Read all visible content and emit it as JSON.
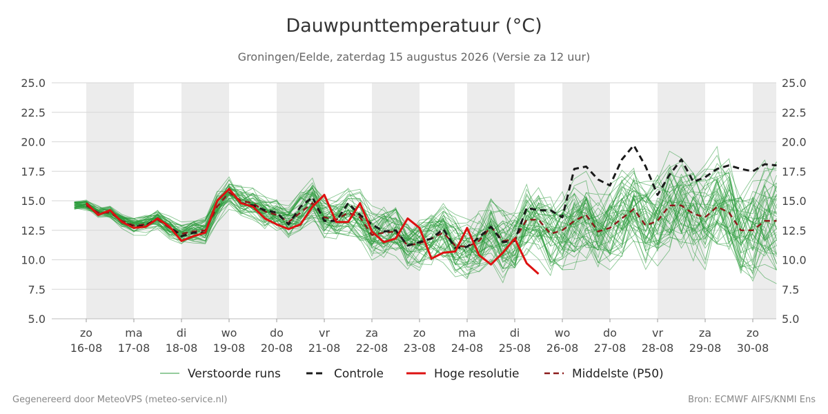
{
  "chart_data": {
    "type": "line",
    "title": "Dauwpunttemperatuur (°C)",
    "subtitle": "Groningen/Eelde, zaterdag 15 augustus 2026 (Versie za 12 uur)",
    "ylim": [
      5.0,
      25.0
    ],
    "y_ticks": [
      "5.0",
      "7.5",
      "10.0",
      "12.5",
      "15.0",
      "17.5",
      "20.0",
      "22.5",
      "25.0"
    ],
    "x_ticks": [
      {
        "day": "zo",
        "date": "16-08"
      },
      {
        "day": "ma",
        "date": "17-08"
      },
      {
        "day": "di",
        "date": "18-08"
      },
      {
        "day": "wo",
        "date": "19-08"
      },
      {
        "day": "do",
        "date": "20-08"
      },
      {
        "day": "vr",
        "date": "21-08"
      },
      {
        "day": "za",
        "date": "22-08"
      },
      {
        "day": "zo",
        "date": "23-08"
      },
      {
        "day": "ma",
        "date": "24-08"
      },
      {
        "day": "di",
        "date": "25-08"
      },
      {
        "day": "wo",
        "date": "26-08"
      },
      {
        "day": "do",
        "date": "27-08"
      },
      {
        "day": "vr",
        "date": "28-08"
      },
      {
        "day": "za",
        "date": "29-08"
      },
      {
        "day": "zo",
        "date": "30-08"
      }
    ],
    "grid": true,
    "legend_position": "bottom",
    "series": [
      {
        "name": "Controle",
        "color": "#1a1a1a",
        "style": "dashed",
        "x": [
          0,
          0.25,
          0.5,
          0.75,
          1,
          1.25,
          1.5,
          1.75,
          2,
          2.25,
          2.5,
          2.75,
          3,
          3.25,
          3.5,
          3.75,
          4,
          4.25,
          4.5,
          4.75,
          5,
          5.25,
          5.5,
          5.75,
          6,
          6.25,
          6.5,
          6.75,
          7,
          7.25,
          7.5,
          7.75,
          8,
          8.25,
          8.5,
          8.75,
          9,
          9.25,
          9.5,
          9.75,
          10,
          10.25,
          10.5,
          10.75,
          11,
          11.25,
          11.5,
          11.75,
          12,
          12.25,
          12.5,
          12.75,
          13,
          13.25,
          13.5,
          13.75,
          14,
          14.25,
          14.5
        ],
        "y": [
          14.8,
          13.8,
          14.2,
          13.2,
          12.8,
          12.9,
          13.5,
          12.8,
          12.0,
          12.3,
          12.3,
          15.0,
          16.0,
          14.8,
          14.6,
          14.2,
          14.0,
          13.0,
          14.5,
          15.3,
          13.3,
          13.3,
          14.8,
          13.8,
          13.0,
          12.4,
          12.5,
          11.2,
          11.5,
          11.8,
          12.6,
          11.0,
          11.1,
          11.9,
          12.8,
          11.5,
          11.6,
          14.4,
          14.2,
          14.2,
          13.6,
          17.7,
          17.9,
          16.8,
          16.3,
          18.5,
          19.7,
          17.9,
          15.5,
          17.2,
          18.5,
          16.6,
          17.0,
          17.7,
          18.0,
          17.7,
          17.5,
          18.1,
          18.0
        ]
      },
      {
        "name": "Hoge resolutie",
        "color": "#dd1111",
        "style": "solid",
        "x": [
          0,
          0.25,
          0.5,
          0.75,
          1,
          1.25,
          1.5,
          1.75,
          2,
          2.25,
          2.5,
          2.75,
          3,
          3.25,
          3.5,
          3.75,
          4,
          4.25,
          4.5,
          4.75,
          5,
          5.25,
          5.5,
          5.75,
          6,
          6.25,
          6.5,
          6.75,
          7,
          7.25,
          7.5,
          7.75,
          8,
          8.25,
          8.5,
          8.75,
          9,
          9.25,
          9.5
        ],
        "y": [
          14.8,
          13.8,
          14.2,
          13.2,
          12.7,
          12.8,
          13.5,
          12.8,
          11.6,
          12.0,
          12.3,
          15.0,
          16.0,
          14.8,
          14.5,
          13.5,
          13.0,
          12.6,
          13.0,
          14.5,
          15.5,
          13.2,
          13.2,
          14.8,
          12.4,
          11.5,
          11.8,
          13.5,
          12.7,
          10.1,
          10.6,
          10.7,
          12.7,
          10.4,
          9.6,
          10.6,
          11.8,
          9.7,
          8.8
        ]
      },
      {
        "name": "Middelste (P50)",
        "color": "#8b1a1a",
        "style": "dashed",
        "x": [
          0,
          0.25,
          0.5,
          0.75,
          1,
          1.25,
          1.5,
          1.75,
          2,
          2.25,
          2.5,
          2.75,
          3,
          3.25,
          3.5,
          3.75,
          4,
          4.25,
          4.5,
          4.75,
          5,
          5.25,
          5.5,
          5.75,
          6,
          6.25,
          6.5,
          6.75,
          7,
          7.25,
          7.5,
          7.75,
          8,
          8.25,
          8.5,
          8.75,
          9,
          9.25,
          9.5,
          9.75,
          10,
          10.25,
          10.5,
          10.75,
          11,
          11.25,
          11.5,
          11.75,
          12,
          12.25,
          12.5,
          12.75,
          13,
          13.25,
          13.5,
          13.75,
          14,
          14.25,
          14.5
        ],
        "y": [
          14.6,
          14.0,
          14.0,
          13.3,
          12.9,
          13.0,
          13.4,
          12.7,
          12.2,
          12.4,
          12.5,
          14.5,
          15.7,
          15.0,
          14.8,
          14.1,
          13.8,
          13.2,
          14.0,
          14.8,
          13.6,
          13.4,
          14.0,
          13.6,
          12.1,
          12.3,
          12.4,
          11.2,
          11.4,
          11.8,
          12.3,
          11.2,
          11.1,
          11.6,
          12.8,
          11.6,
          11.7,
          13.4,
          13.4,
          12.2,
          12.5,
          13.3,
          13.8,
          12.4,
          12.7,
          13.5,
          14.3,
          12.9,
          13.3,
          14.6,
          14.6,
          13.9,
          13.6,
          14.5,
          14.0,
          12.5,
          12.5,
          13.3,
          13.3
        ]
      },
      {
        "name": "Verstoorde runs",
        "color": "#2a9a3a",
        "style": "thin-ensemble",
        "values": "approximate ensemble members"
      }
    ]
  },
  "legend": {
    "items": [
      {
        "label": "Verstoorde runs"
      },
      {
        "label": "Controle"
      },
      {
        "label": "Hoge resolutie"
      },
      {
        "label": "Middelste (P50)"
      }
    ]
  },
  "footer": {
    "left": "Gegenereerd door MeteoVPS (meteo-service.nl)",
    "right": "Bron: ECMWF AIFS/KNMI Ens"
  }
}
